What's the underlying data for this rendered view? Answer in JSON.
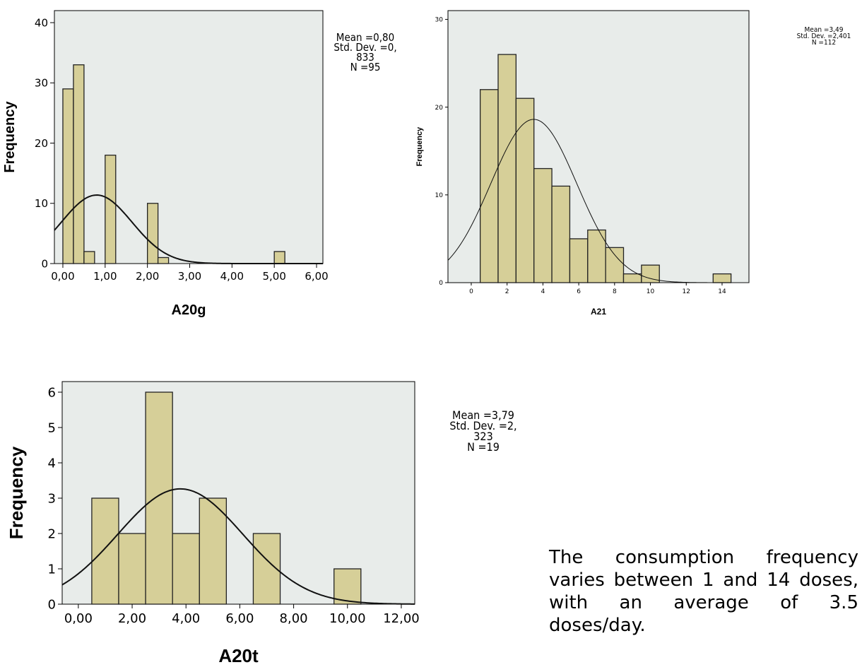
{
  "chart_data": [
    {
      "type": "bar",
      "xlabel": "A20g",
      "ylabel": "Frequency",
      "xlim": [
        -0.2,
        6.15
      ],
      "ylim": [
        0,
        42
      ],
      "yticks": [
        0,
        10,
        20,
        30,
        40
      ],
      "xticks": [
        "0,00",
        "1,00",
        "2,00",
        "3,00",
        "4,00",
        "5,00",
        "6,00"
      ],
      "xtick_values": [
        0,
        1,
        2,
        3,
        4,
        5,
        6
      ],
      "bins": [
        {
          "x0": 0.0,
          "x1": 0.25,
          "value": 29
        },
        {
          "x0": 0.25,
          "x1": 0.5,
          "value": 33
        },
        {
          "x0": 0.5,
          "x1": 0.75,
          "value": 2
        },
        {
          "x0": 0.75,
          "x1": 1.0,
          "value": 0
        },
        {
          "x0": 1.0,
          "x1": 1.25,
          "value": 18
        },
        {
          "x0": 2.0,
          "x1": 2.25,
          "value": 10
        },
        {
          "x0": 2.25,
          "x1": 2.5,
          "value": 1
        },
        {
          "x0": 5.0,
          "x1": 5.25,
          "value": 2
        }
      ],
      "curve": {
        "mean": 0.8,
        "sd": 0.833
      },
      "stats": [
        "Mean =0,80",
        "Std. Dev. =0,",
        "833",
        "N =95"
      ],
      "grid": false
    },
    {
      "type": "bar",
      "xlabel": "A21",
      "ylabel": "Frequency",
      "xlim": [
        -1.3,
        15.5
      ],
      "ylim": [
        0,
        31
      ],
      "yticks": [
        0,
        10,
        20,
        30
      ],
      "xticks": [
        "0",
        "2",
        "4",
        "6",
        "8",
        "10",
        "12",
        "14"
      ],
      "xtick_values": [
        0,
        2,
        4,
        6,
        8,
        10,
        12,
        14
      ],
      "bins": [
        {
          "x0": 0.5,
          "x1": 1.5,
          "value": 22
        },
        {
          "x0": 1.5,
          "x1": 2.5,
          "value": 26
        },
        {
          "x0": 2.5,
          "x1": 3.5,
          "value": 21
        },
        {
          "x0": 3.5,
          "x1": 4.5,
          "value": 13
        },
        {
          "x0": 4.5,
          "x1": 5.5,
          "value": 11
        },
        {
          "x0": 5.5,
          "x1": 6.5,
          "value": 5
        },
        {
          "x0": 6.5,
          "x1": 7.5,
          "value": 6
        },
        {
          "x0": 7.5,
          "x1": 8.5,
          "value": 4
        },
        {
          "x0": 8.5,
          "x1": 9.5,
          "value": 1
        },
        {
          "x0": 9.5,
          "x1": 10.5,
          "value": 2
        },
        {
          "x0": 13.5,
          "x1": 14.5,
          "value": 1
        }
      ],
      "curve": {
        "mean": 3.49,
        "sd": 2.401
      },
      "stats": [
        "Mean =3,49",
        "Std. Dev. =2,401",
        "N =112"
      ],
      "grid": false
    },
    {
      "type": "bar",
      "xlabel": "A20t",
      "ylabel": "Frequency",
      "xlim": [
        -0.6,
        12.5
      ],
      "ylim": [
        0,
        6.3
      ],
      "yticks": [
        0,
        1,
        2,
        3,
        4,
        5,
        6
      ],
      "xticks": [
        "0,00",
        "2,00",
        "4,00",
        "6,00",
        "8,00",
        "10,00",
        "12,00"
      ],
      "xtick_values": [
        0,
        2,
        4,
        6,
        8,
        10,
        12
      ],
      "bins": [
        {
          "x0": 0.5,
          "x1": 1.5,
          "value": 3
        },
        {
          "x0": 1.5,
          "x1": 2.5,
          "value": 2
        },
        {
          "x0": 2.5,
          "x1": 3.5,
          "value": 6
        },
        {
          "x0": 3.5,
          "x1": 4.5,
          "value": 2
        },
        {
          "x0": 4.5,
          "x1": 5.5,
          "value": 3
        },
        {
          "x0": 6.5,
          "x1": 7.5,
          "value": 2
        },
        {
          "x0": 9.5,
          "x1": 10.5,
          "value": 1
        }
      ],
      "curve": {
        "mean": 3.79,
        "sd": 2.323
      },
      "stats": [
        "Mean =3,79",
        "Std. Dev. =2,",
        "323",
        "N =19"
      ],
      "grid": false
    }
  ],
  "colors": {
    "plot_background": "#e8ecea",
    "bar_fill": "#d6cf98",
    "bar_stroke": "#222222",
    "curve": "#111111"
  },
  "caption": "The consumption frequency varies between 1 and 14 doses, with an average of 3.5 doses/day."
}
